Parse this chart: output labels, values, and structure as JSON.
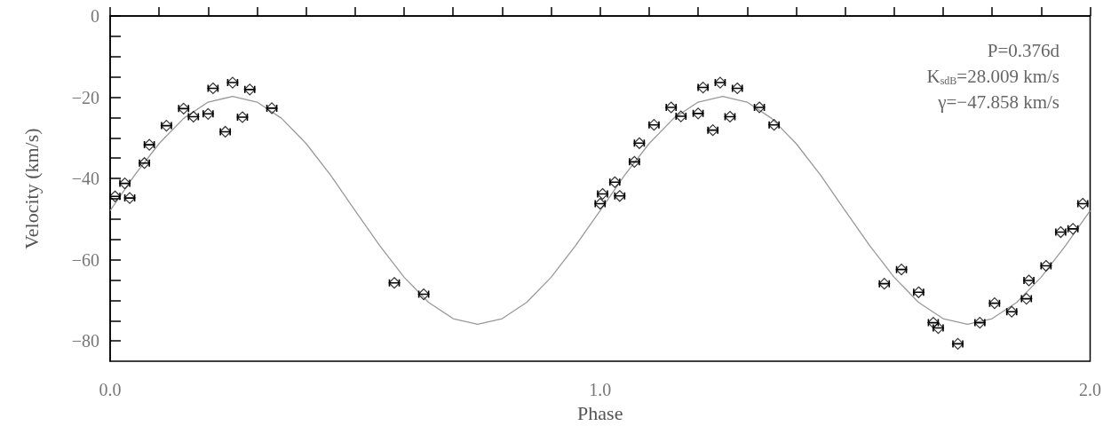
{
  "chart_data": {
    "type": "scatter",
    "xlabel": "Phase",
    "ylabel": "Velocity (km/s)",
    "annotations": [
      "P=0.376d",
      "K$_{sdB}$=28.009 km/s",
      "γ=−47.858 km/s"
    ],
    "xlim": [
      0,
      2
    ],
    "ylim": [
      -85,
      0
    ],
    "xticks": [
      {
        "value": 0,
        "label": "0.0"
      },
      {
        "value": 0.1,
        "label": null
      },
      {
        "value": 0.2,
        "label": null
      },
      {
        "value": 0.3,
        "label": null
      },
      {
        "value": 0.4,
        "label": null
      },
      {
        "value": 0.5,
        "label": null
      },
      {
        "value": 0.6,
        "label": null
      },
      {
        "value": 0.7,
        "label": null
      },
      {
        "value": 0.8,
        "label": null
      },
      {
        "value": 0.9,
        "label": null
      },
      {
        "value": 1,
        "label": "1.0"
      },
      {
        "value": 1.1,
        "label": null
      },
      {
        "value": 1.2,
        "label": null
      },
      {
        "value": 1.3,
        "label": null
      },
      {
        "value": 1.4,
        "label": null
      },
      {
        "value": 1.5,
        "label": null
      },
      {
        "value": 1.6,
        "label": null
      },
      {
        "value": 1.7,
        "label": null
      },
      {
        "value": 1.8,
        "label": null
      },
      {
        "value": 1.9,
        "label": null
      },
      {
        "value": 2,
        "label": "2.0"
      }
    ],
    "yticks": [
      -80,
      {
        "value": -75,
        "label": null
      },
      {
        "value": -70,
        "label": null
      },
      {
        "value": -65,
        "label": null
      },
      -60,
      {
        "value": -55,
        "label": null
      },
      {
        "value": -50,
        "label": null
      },
      {
        "value": -45,
        "label": null
      },
      -40,
      {
        "value": -35,
        "label": null
      },
      {
        "value": -30,
        "label": null
      },
      {
        "value": -25,
        "label": null
      },
      -20,
      {
        "value": -15,
        "label": null
      },
      {
        "value": -10,
        "label": null
      },
      {
        "value": -5,
        "label": null
      },
      0
    ],
    "grid": false,
    "series": [
      {
        "type": "scatter",
        "color": "#000000",
        "marker": "diamond",
        "x": [
          0.01,
          0.03,
          0.04,
          0.07,
          0.08,
          0.115,
          0.15,
          0.17,
          0.2,
          0.21,
          0.235,
          0.25,
          0.27,
          0.285,
          0.33,
          0.58,
          0.64,
          1.0,
          1.005,
          1.03,
          1.04,
          1.07,
          1.08,
          1.11,
          1.145,
          1.165,
          1.2,
          1.21,
          1.23,
          1.245,
          1.265,
          1.28,
          1.325,
          1.355,
          1.58,
          1.615,
          1.65,
          1.68,
          1.69,
          1.73,
          1.775,
          1.805,
          1.84,
          1.87,
          1.875,
          1.91,
          1.94,
          1.965,
          1.985
        ],
        "values": [
          -44.4,
          -41.2,
          -44.8,
          -36.2,
          -31.7,
          -27.0,
          -22.8,
          -24.8,
          -24.1,
          -17.8,
          -28.5,
          -16.4,
          -24.9,
          -18.1,
          -22.7,
          -65.7,
          -68.5,
          -46.2,
          -43.8,
          -40.9,
          -44.3,
          -35.9,
          -31.3,
          -26.8,
          -22.5,
          -24.7,
          -24.0,
          -17.6,
          -28.1,
          -16.4,
          -24.8,
          -17.8,
          -22.5,
          -26.8,
          -65.9,
          -62.4,
          -68.0,
          -75.5,
          -76.8,
          -80.7,
          -75.5,
          -70.7,
          -72.8,
          -69.6,
          -65.1,
          -61.5,
          -53.2,
          -52.4,
          -46.2
        ],
        "xerrors": [
          0.01,
          0.01,
          0.01,
          0.01,
          0.01,
          0.01,
          0.01,
          0.01,
          0.01,
          0.01,
          0.01,
          0.01,
          0.01,
          0.01,
          0.01,
          0.01,
          0.01,
          0.01,
          0.01,
          0.01,
          0.01,
          0.01,
          0.01,
          0.01,
          0.01,
          0.01,
          0.01,
          0.01,
          0.01,
          0.01,
          0.01,
          0.01,
          0.01,
          0.01,
          0.01,
          0.01,
          0.01,
          0.01,
          0.01,
          0.01,
          0.01,
          0.01,
          0.01,
          0.01,
          0.01,
          0.01,
          0.01,
          0.01,
          0.01
        ]
      },
      {
        "type": "line",
        "color": "#999999",
        "line_style": "solid",
        "marker": "none",
        "x": [
          0,
          0.05,
          0.1,
          0.15,
          0.2,
          0.25,
          0.3,
          0.35,
          0.4,
          0.45,
          0.5,
          0.55,
          0.6,
          0.65,
          0.7,
          0.75,
          0.8,
          0.85,
          0.9,
          0.95,
          1,
          1.05,
          1.1,
          1.15,
          1.2,
          1.25,
          1.3,
          1.35,
          1.4,
          1.45,
          1.5,
          1.55,
          1.6,
          1.65,
          1.7,
          1.75,
          1.8,
          1.85,
          1.9,
          1.95,
          2
        ],
        "values": [
          -47.9,
          -39.2,
          -31.4,
          -25.2,
          -21.2,
          -19.8,
          -21.2,
          -25.2,
          -31.4,
          -39.2,
          -47.9,
          -56.5,
          -64.3,
          -70.5,
          -74.5,
          -75.9,
          -74.5,
          -70.5,
          -64.3,
          -56.5,
          -47.9,
          -39.2,
          -31.4,
          -25.2,
          -21.2,
          -19.8,
          -21.2,
          -25.2,
          -31.4,
          -39.2,
          -47.9,
          -56.5,
          -64.3,
          -70.5,
          -74.5,
          -75.9,
          -74.5,
          -70.5,
          -64.3,
          -56.5,
          -47.9
        ]
      }
    ]
  }
}
